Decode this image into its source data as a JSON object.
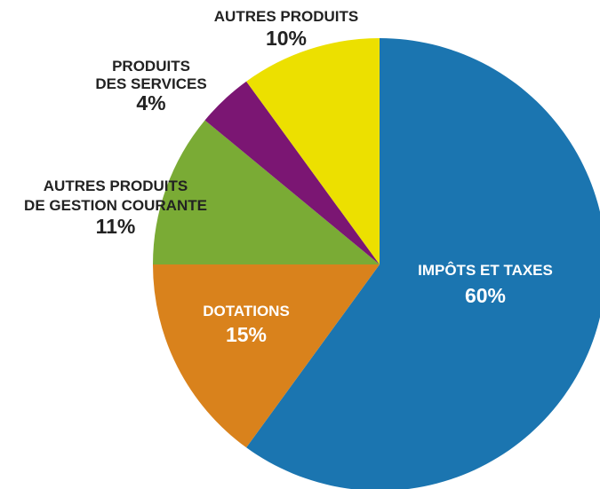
{
  "chart_data": {
    "type": "pie",
    "categories": [
      [
        "IMPÔTS ET TAXES"
      ],
      [
        "DOTATIONS"
      ],
      [
        "AUTRES PRODUITS",
        "DE GESTION COURANTE"
      ],
      [
        "PRODUITS",
        "DES SERVICES"
      ],
      [
        "AUTRES PRODUITS"
      ]
    ],
    "values": [
      60,
      15,
      11,
      4,
      10
    ],
    "value_labels": [
      "60%",
      "15%",
      "11%",
      "4%",
      "10%"
    ],
    "colors": [
      "#1b75b0",
      "#d9821c",
      "#7aab35",
      "#7b1673",
      "#ece000"
    ]
  }
}
